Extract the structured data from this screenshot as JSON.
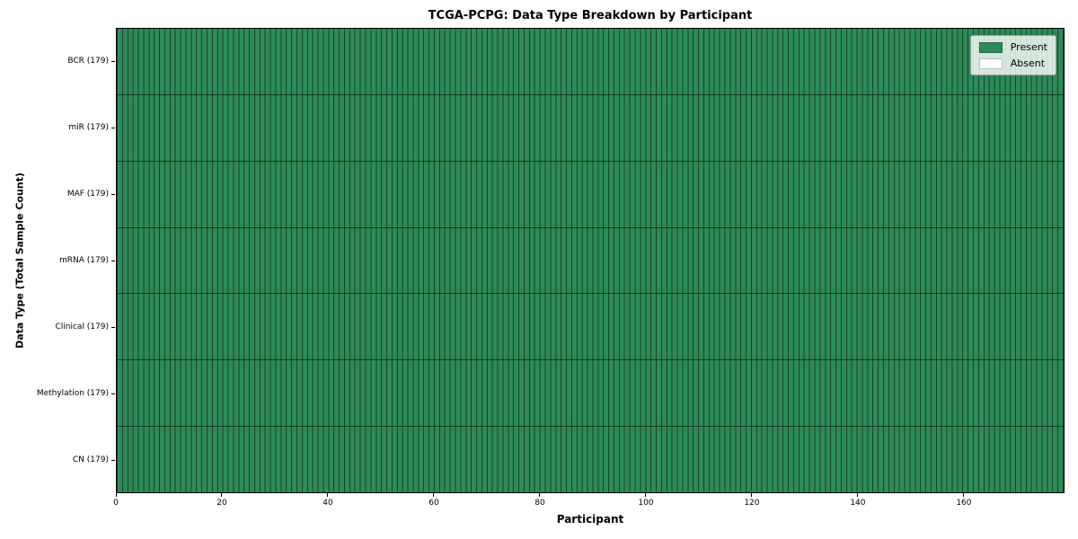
{
  "chart_data": {
    "type": "heatmap",
    "title": "TCGA-PCPG: Data Type Breakdown by Participant",
    "xlabel": "Participant",
    "ylabel": "Data Type (Total Sample Count)",
    "participants": 179,
    "xlim": [
      0,
      179
    ],
    "x_ticks": [
      0,
      20,
      40,
      60,
      80,
      100,
      120,
      140,
      160
    ],
    "grid": true,
    "legend_position": "upper right",
    "legend_items": [
      {
        "label": "Present",
        "color": "#2e8b57"
      },
      {
        "label": "Absent",
        "color": "#ffffff"
      }
    ],
    "rows": [
      {
        "data_type": "BCR",
        "total_samples": 179,
        "tick_label": "BCR (179)",
        "present_count": 179,
        "absent_count": 0
      },
      {
        "data_type": "miR",
        "total_samples": 179,
        "tick_label": "miR (179)",
        "present_count": 179,
        "absent_count": 0
      },
      {
        "data_type": "MAF",
        "total_samples": 179,
        "tick_label": "MAF (179)",
        "present_count": 179,
        "absent_count": 0
      },
      {
        "data_type": "mRNA",
        "total_samples": 179,
        "tick_label": "mRNA (179)",
        "present_count": 179,
        "absent_count": 0
      },
      {
        "data_type": "Clinical",
        "total_samples": 179,
        "tick_label": "Clinical (179)",
        "present_count": 179,
        "absent_count": 0
      },
      {
        "data_type": "Methylation",
        "total_samples": 179,
        "tick_label": "Methylation (179)",
        "present_count": 179,
        "absent_count": 0
      },
      {
        "data_type": "CN",
        "total_samples": 179,
        "tick_label": "CN (179)",
        "present_count": 179,
        "absent_count": 0
      }
    ],
    "colors": {
      "present": "#2e8b57",
      "absent": "#ffffff",
      "cell_edge": "rgba(0,0,0,0.5)",
      "row_separator": "rgba(0,0,0,0.55)",
      "axis": "#000000"
    }
  }
}
